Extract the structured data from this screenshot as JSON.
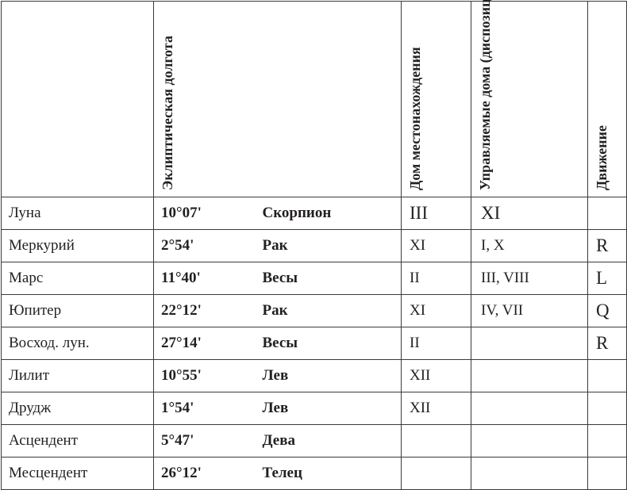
{
  "headers": {
    "planet": "",
    "longitude": "Эклиптическая долгота",
    "house": "Дом местонахождения",
    "ruled_houses": "Управляемые дома (диспозиции)",
    "motion": "Движение"
  },
  "rows": [
    {
      "name": "Луна",
      "longitude": "10°07'",
      "sign": "Скорпион",
      "house": "III",
      "ruled": "XI",
      "motion": ""
    },
    {
      "name": "Меркурий",
      "longitude": "2°54'",
      "sign": "Рак",
      "house": "XI",
      "ruled": "I, X",
      "motion": "R"
    },
    {
      "name": "Марс",
      "longitude": "11°40'",
      "sign": "Весы",
      "house": "II",
      "ruled": "III, VIII",
      "motion": "L"
    },
    {
      "name": "Юпитер",
      "longitude": "22°12'",
      "sign": "Рак",
      "house": "XI",
      "ruled": "IV, VII",
      "motion": "Q"
    },
    {
      "name": "Восход. лун.",
      "longitude": "27°14'",
      "sign": "Весы",
      "house": "II",
      "ruled": "",
      "motion": "R"
    },
    {
      "name": "Лилит",
      "longitude": "10°55'",
      "sign": "Лев",
      "house": "XII",
      "ruled": "",
      "motion": ""
    },
    {
      "name": "Друдж",
      "longitude": "1°54'",
      "sign": "Лев",
      "house": "XII",
      "ruled": "",
      "motion": ""
    },
    {
      "name": "Асцендент",
      "longitude": "5°47'",
      "sign": "Дева",
      "house": "",
      "ruled": "",
      "motion": ""
    },
    {
      "name": "Месцендент",
      "longitude": "26°12'",
      "sign": "Телец",
      "house": "",
      "ruled": "",
      "motion": ""
    }
  ]
}
